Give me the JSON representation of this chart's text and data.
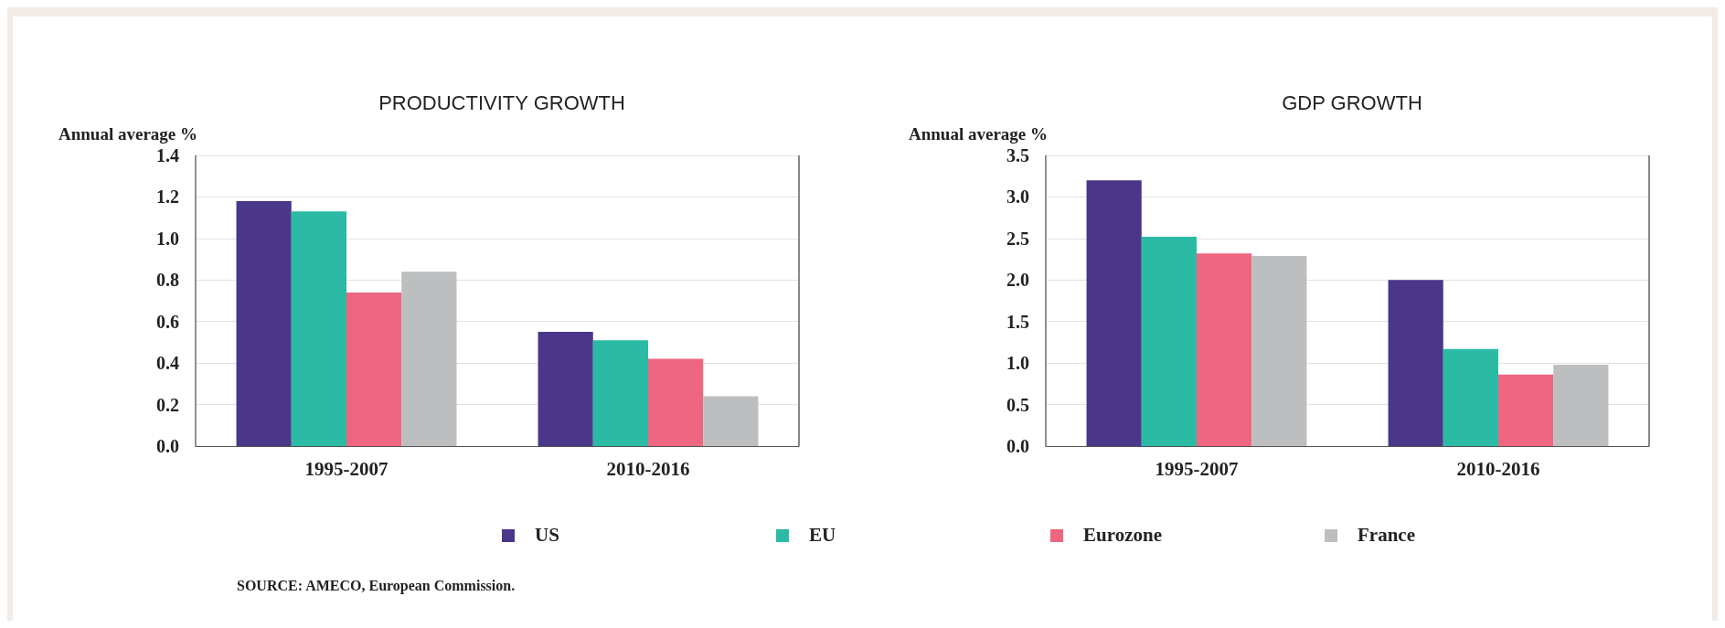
{
  "chart_data": [
    {
      "type": "bar",
      "title": "PRODUCTIVITY GROWTH",
      "ylabel": "Annual average %",
      "categories": [
        "1995-2007",
        "2010-2016"
      ],
      "series": [
        {
          "name": "US",
          "color": "#4b3789",
          "values": [
            1.18,
            0.55
          ]
        },
        {
          "name": "EU",
          "color": "#2bbba5",
          "values": [
            1.13,
            0.51
          ]
        },
        {
          "name": "Eurozone",
          "color": "#ee6680",
          "values": [
            0.74,
            0.42
          ]
        },
        {
          "name": "France",
          "color": "#bdbec0",
          "values": [
            0.84,
            0.24
          ]
        }
      ],
      "ylim": [
        0,
        1.4
      ],
      "yticks": [
        {
          "value": 0,
          "label": "0.0"
        },
        0.2,
        0.4,
        0.6,
        0.8,
        {
          "value": 1,
          "label": "1.0"
        },
        1.2,
        1.4
      ],
      "grid": "y",
      "legend": "bottom",
      "annotations": [
        "SOURCE: AMECO, European Commission."
      ]
    },
    {
      "type": "bar",
      "title": "GDP GROWTH",
      "ylabel": "Annual average %",
      "categories": [
        "1995-2007",
        "2010-2016"
      ],
      "series": [
        {
          "color": "#4b3789",
          "values": [
            3.2,
            2.0
          ]
        },
        {
          "color": "#2bbba5",
          "values": [
            2.52,
            1.17
          ]
        },
        {
          "color": "#ee6680",
          "values": [
            2.32,
            0.86
          ]
        },
        {
          "color": "#bdbec0",
          "values": [
            2.29,
            0.98
          ]
        }
      ],
      "ylim": [
        0,
        3.5
      ],
      "yticks": [
        {
          "value": 0,
          "label": "0.0"
        },
        0.5,
        {
          "value": 1,
          "label": "1.0"
        },
        1.5,
        {
          "value": 2,
          "label": "2.0"
        },
        2.5,
        {
          "value": 3,
          "label": "3.0"
        },
        3.5
      ],
      "grid": "y"
    }
  ]
}
